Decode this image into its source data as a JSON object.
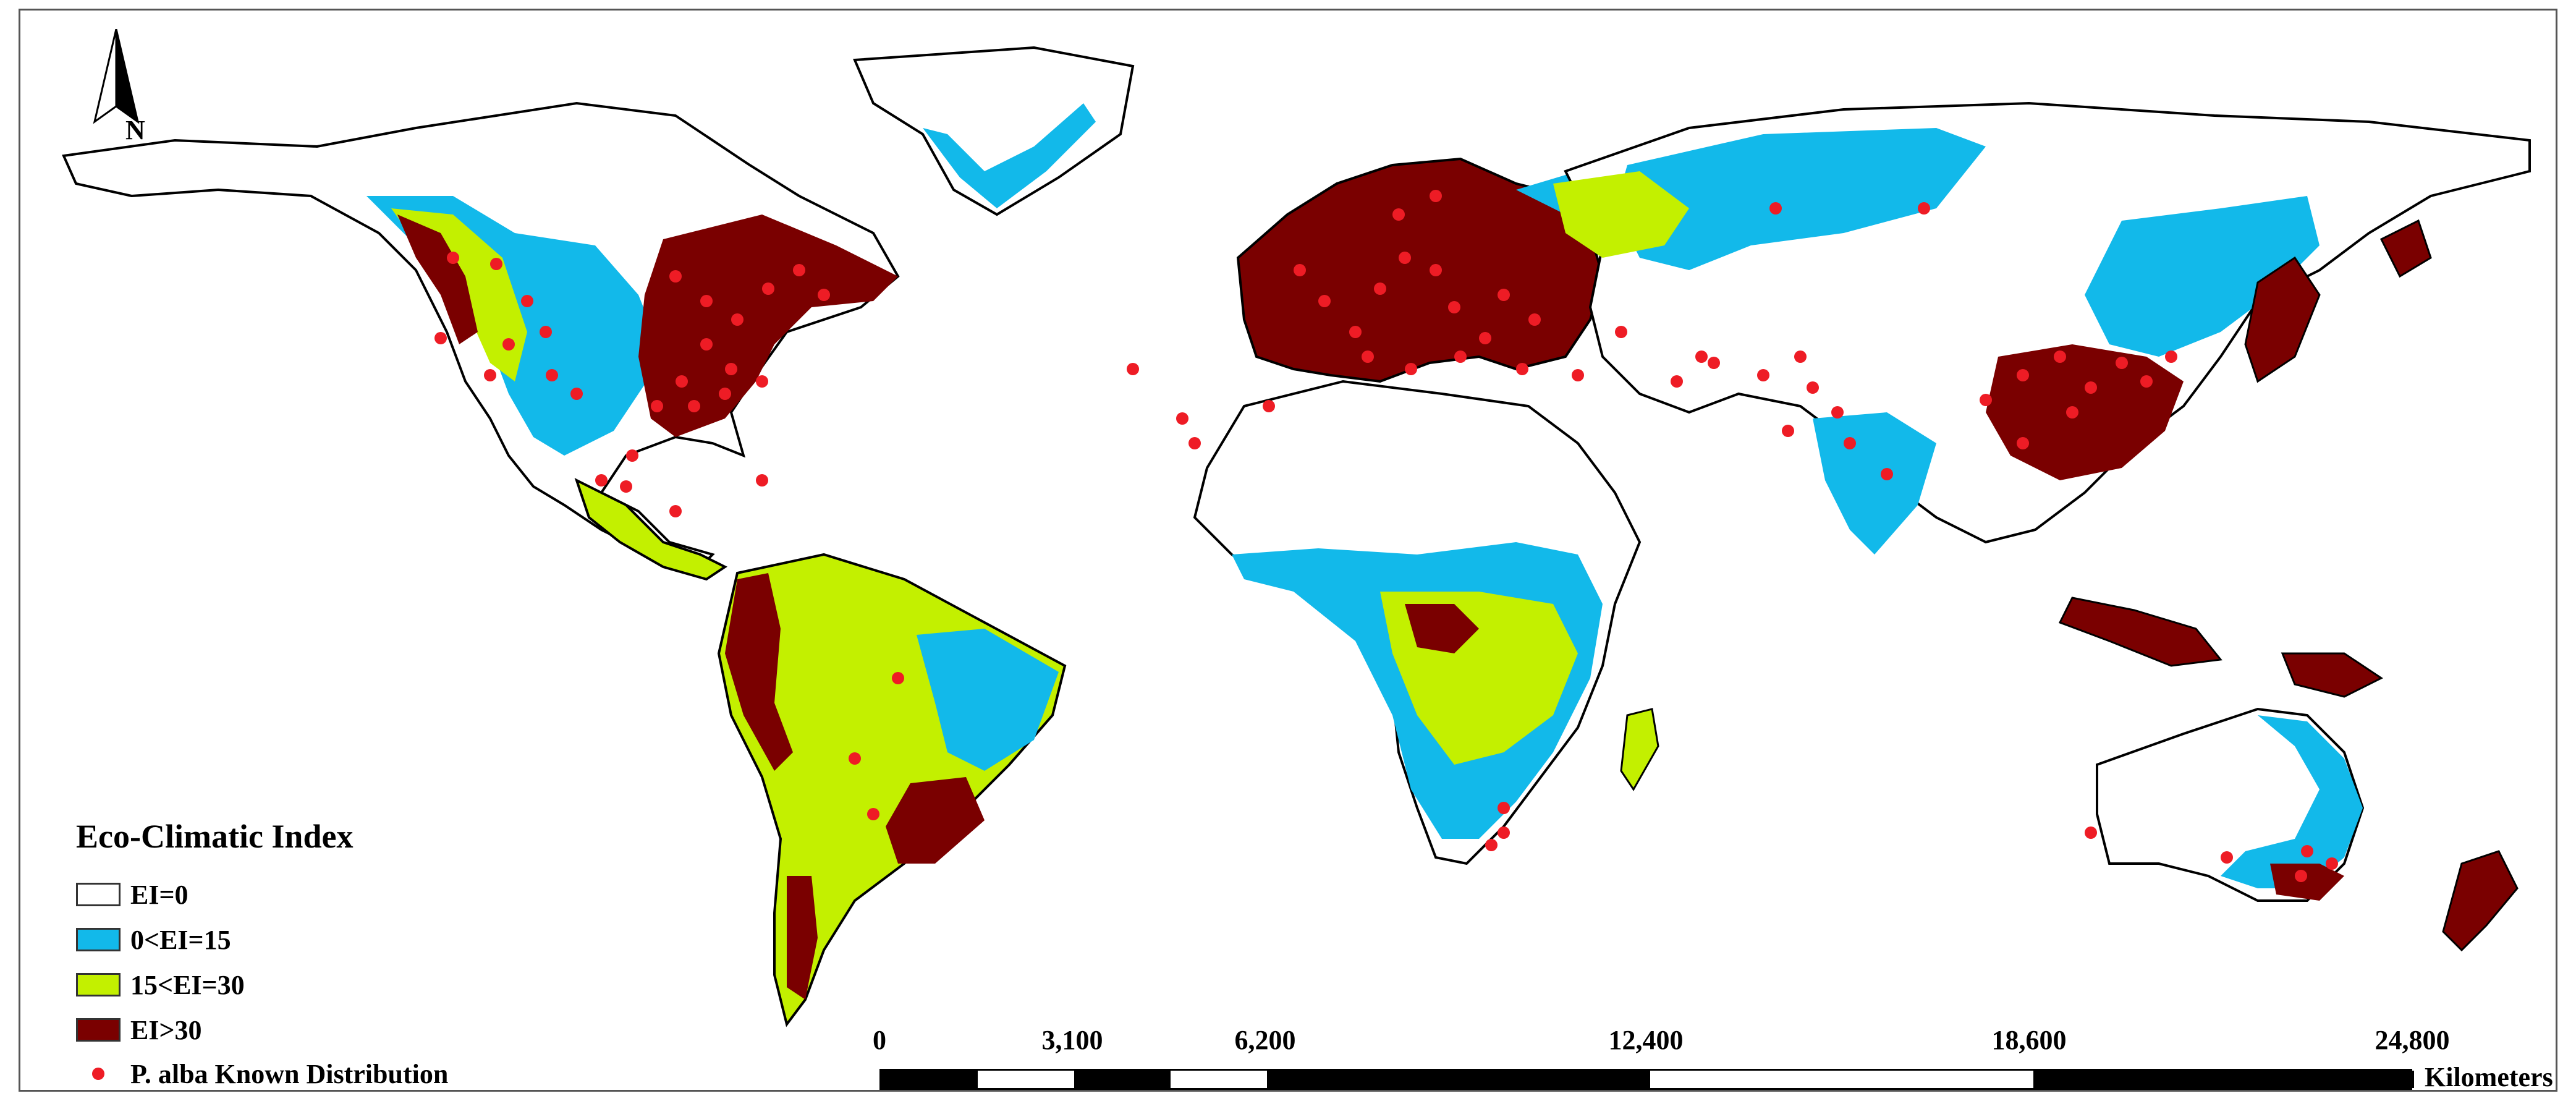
{
  "map": {
    "north_label": "N",
    "colors": {
      "ocean": "#ffffff",
      "land_ei0": "#ffffff",
      "ei_0_15": "#12b9ea",
      "ei_15_30": "#c3f000",
      "ei_gt30": "#7a0000",
      "border": "#000000",
      "points": "#ee1c25"
    }
  },
  "legend": {
    "title": "Eco-Climatic Index",
    "items": [
      {
        "label": "EI=0",
        "color": "#ffffff"
      },
      {
        "label": "0<EI=15",
        "color": "#12b9ea"
      },
      {
        "label": "15<EI=30",
        "color": "#c3f000"
      },
      {
        "label": "EI>30",
        "color": "#7a0000"
      }
    ],
    "points_label": "P. alba Known Distribution",
    "points_color": "#ee1c25"
  },
  "scalebar": {
    "ticks": [
      "0",
      "3,100",
      "6,200",
      "12,400",
      "18,600",
      "24,800"
    ],
    "units": "Kilometers"
  }
}
